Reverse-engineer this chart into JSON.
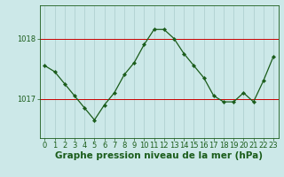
{
  "x": [
    0,
    1,
    2,
    3,
    4,
    5,
    6,
    7,
    8,
    9,
    10,
    11,
    12,
    13,
    14,
    15,
    16,
    17,
    18,
    19,
    20,
    21,
    22,
    23
  ],
  "y": [
    1017.55,
    1017.45,
    1017.25,
    1017.05,
    1016.85,
    1016.65,
    1016.9,
    1017.1,
    1017.4,
    1017.6,
    1017.9,
    1018.15,
    1018.15,
    1018.0,
    1017.75,
    1017.55,
    1017.35,
    1017.05,
    1016.95,
    1016.95,
    1017.1,
    1016.95,
    1017.3,
    1017.7
  ],
  "line_color": "#1a5c1a",
  "marker_color": "#1a5c1a",
  "bg_color": "#cce8e8",
  "grid_color": "#aacccc",
  "axis_color": "#1a5c1a",
  "red_line_color": "#cc0000",
  "xlabel": "Graphe pression niveau de la mer (hPa)",
  "xlabel_fontsize": 7.5,
  "tick_fontsize": 6.0,
  "yticks": [
    1017,
    1018
  ],
  "ylim": [
    1016.35,
    1018.55
  ],
  "xlim": [
    -0.5,
    23.5
  ]
}
